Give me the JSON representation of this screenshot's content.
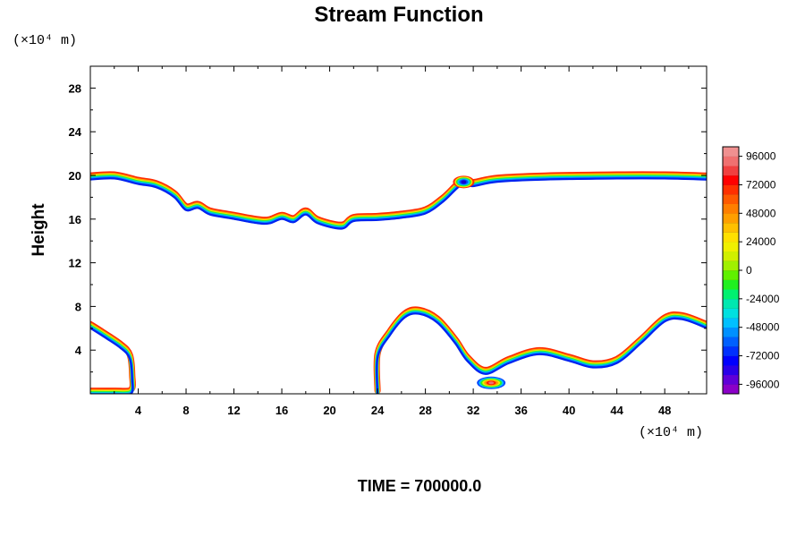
{
  "chart_data": {
    "type": "contour",
    "title": "Stream Function",
    "ylabel": "Height",
    "y_unit": "(×10⁴ m)",
    "x_unit": "(×10⁴ m)",
    "xlim": [
      0,
      51.5
    ],
    "ylim": [
      0,
      30
    ],
    "xticks": [
      4,
      8,
      12,
      16,
      20,
      24,
      28,
      32,
      36,
      40,
      44,
      48
    ],
    "yticks": [
      4,
      8,
      12,
      16,
      20,
      24,
      28
    ],
    "grid": false,
    "footer": "TIME = 700000.0",
    "colorbar": {
      "range": [
        -104000,
        104000
      ],
      "labels": [
        "96000",
        "72000",
        "48000",
        "24000",
        "0",
        "-24000",
        "-48000",
        "-72000",
        "-96000"
      ],
      "label_values": [
        96000,
        72000,
        48000,
        24000,
        0,
        -24000,
        -48000,
        -72000,
        -96000
      ],
      "colors": [
        "#8b00c8",
        "#6000d8",
        "#2a00e8",
        "#0000ff",
        "#0030ff",
        "#0060ff",
        "#0090ff",
        "#00c0ff",
        "#00e0e0",
        "#00e8b0",
        "#00f070",
        "#20f020",
        "#60f000",
        "#a0f000",
        "#d0f000",
        "#f0f000",
        "#ffe000",
        "#ffc000",
        "#ff9f00",
        "#ff7f00",
        "#ff5a00",
        "#ff3000",
        "#ff0000",
        "#f04040",
        "#f07070",
        "#f09090"
      ],
      "position": "right"
    },
    "contour_bands": [
      {
        "name": "upper-interface",
        "points": [
          [
            0,
            19.8
          ],
          [
            2,
            19.9
          ],
          [
            4,
            19.4
          ],
          [
            5.5,
            19.1
          ],
          [
            7,
            18.2
          ],
          [
            8,
            17.0
          ],
          [
            9,
            17.2
          ],
          [
            10,
            16.6
          ],
          [
            12,
            16.2
          ],
          [
            14,
            15.8
          ],
          [
            15,
            15.8
          ],
          [
            16,
            16.2
          ],
          [
            17,
            15.9
          ],
          [
            18,
            16.6
          ],
          [
            19,
            15.8
          ],
          [
            21,
            15.3
          ],
          [
            22,
            16.0
          ],
          [
            24,
            16.1
          ],
          [
            26,
            16.3
          ],
          [
            28,
            16.7
          ],
          [
            29.5,
            17.8
          ],
          [
            31,
            19.3
          ],
          [
            32,
            19.2
          ],
          [
            34,
            19.6
          ],
          [
            38,
            19.8
          ],
          [
            44,
            19.9
          ],
          [
            48,
            19.9
          ],
          [
            51.5,
            19.8
          ]
        ]
      },
      {
        "name": "left-hill",
        "points": [
          [
            0,
            6.2
          ],
          [
            1,
            5.5
          ],
          [
            2.5,
            4.4
          ],
          [
            3.3,
            3.4
          ],
          [
            3.5,
            1.5
          ],
          [
            3.4,
            0.2
          ],
          [
            2,
            0.1
          ],
          [
            0,
            0.1
          ]
        ]
      },
      {
        "name": "right-hills",
        "points": [
          [
            24,
            0.1
          ],
          [
            24,
            3.5
          ],
          [
            25,
            5.5
          ],
          [
            26.3,
            7.2
          ],
          [
            27.5,
            7.5
          ],
          [
            29,
            6.7
          ],
          [
            30.5,
            4.8
          ],
          [
            31.5,
            3.2
          ],
          [
            33,
            2.0
          ],
          [
            35,
            3.0
          ],
          [
            37.5,
            3.8
          ],
          [
            40,
            3.2
          ],
          [
            42,
            2.6
          ],
          [
            44,
            3.0
          ],
          [
            46,
            4.8
          ],
          [
            48,
            6.8
          ],
          [
            49.5,
            7.0
          ],
          [
            51.5,
            6.2
          ]
        ]
      }
    ],
    "vortices": [
      {
        "name": "negative-eddy",
        "x": 31.2,
        "y": 19.4,
        "value": -96000
      },
      {
        "name": "positive-cell",
        "x": 33.5,
        "y": 1.0,
        "value": 96000
      }
    ]
  }
}
